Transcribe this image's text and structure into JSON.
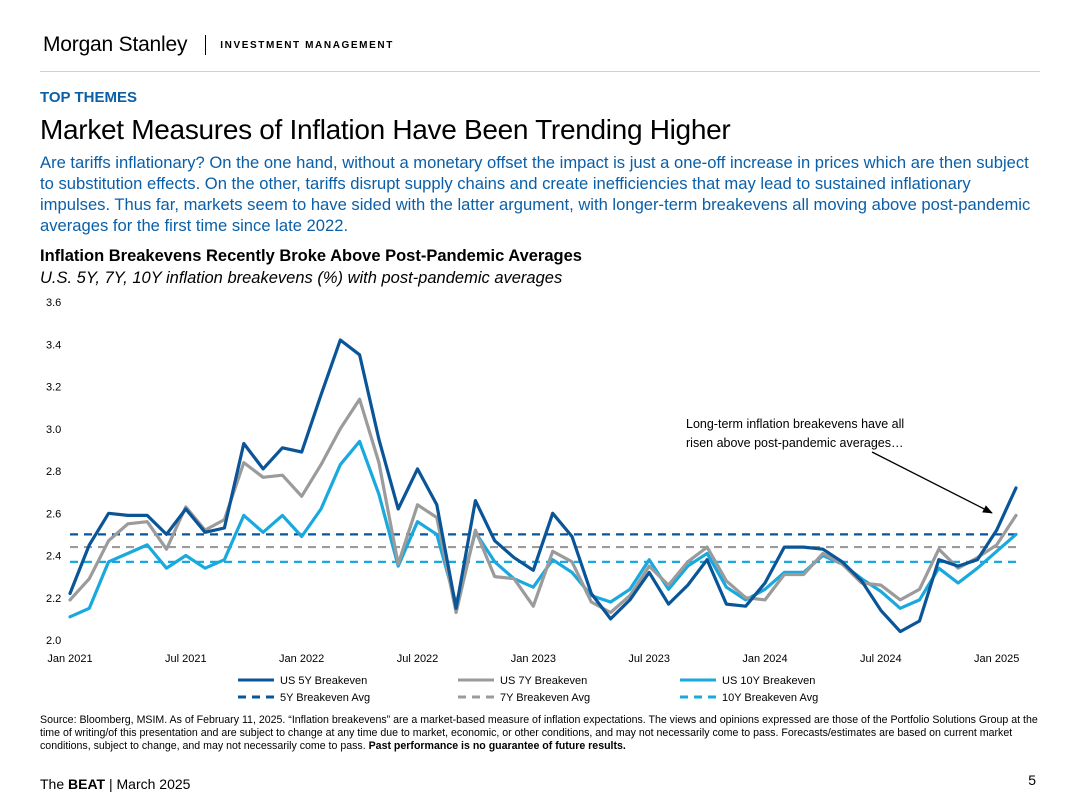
{
  "header": {
    "logo_text": "Morgan Stanley",
    "division": "INVESTMENT MANAGEMENT"
  },
  "kicker": "TOP THEMES",
  "title": "Market Measures of Inflation Have Been Trending Higher",
  "intro": "Are tariffs inflationary? On the one hand, without a monetary offset the impact is just a one-off increase in prices which are then subject to substitution effects. On the other, tariffs disrupt supply chains and create inefficiencies that may lead to sustained inflationary impulses. Thus far, markets seem to have sided with the latter argument, with longer-term breakevens all moving above post-pandemic averages for the first time since late 2022.",
  "colors": {
    "accent_blue": "#0a5fa8",
    "series_5y": "#0a5597",
    "series_7y": "#9b9b9b",
    "series_10y": "#19a9de"
  },
  "chart_data": {
    "type": "line",
    "title": "Inflation Breakevens Recently Broke Above Post-Pandemic Averages",
    "subtitle": "U.S. 5Y, 7Y, 10Y inflation breakevens (%) with post-pandemic averages",
    "x": [
      "2021-01",
      "2021-02",
      "2021-03",
      "2021-04",
      "2021-05",
      "2021-06",
      "2021-07",
      "2021-08",
      "2021-09",
      "2021-10",
      "2021-11",
      "2021-12",
      "2022-01",
      "2022-02",
      "2022-03",
      "2022-04",
      "2022-05",
      "2022-06",
      "2022-07",
      "2022-08",
      "2022-09",
      "2022-10",
      "2022-11",
      "2022-12",
      "2023-01",
      "2023-02",
      "2023-03",
      "2023-04",
      "2023-05",
      "2023-06",
      "2023-07",
      "2023-08",
      "2023-09",
      "2023-10",
      "2023-11",
      "2023-12",
      "2024-01",
      "2024-02",
      "2024-03",
      "2024-04",
      "2024-05",
      "2024-06",
      "2024-07",
      "2024-08",
      "2024-09",
      "2024-10",
      "2024-11",
      "2024-12",
      "2025-01",
      "2025-02"
    ],
    "x_ticks": [
      {
        "x": "2021-01",
        "label": "Jan 2021"
      },
      {
        "x": "2021-07",
        "label": "Jul 2021"
      },
      {
        "x": "2022-01",
        "label": "Jan 2022"
      },
      {
        "x": "2022-07",
        "label": "Jul 2022"
      },
      {
        "x": "2023-01",
        "label": "Jan 2023"
      },
      {
        "x": "2023-07",
        "label": "Jul 2023"
      },
      {
        "x": "2024-01",
        "label": "Jan 2024"
      },
      {
        "x": "2024-07",
        "label": "Jul 2024"
      },
      {
        "x": "2025-01",
        "label": "Jan 2025"
      }
    ],
    "ylim": [
      2.0,
      3.6
    ],
    "y_ticks": [
      "2.0",
      "2.2",
      "2.4",
      "2.6",
      "2.8",
      "3.0",
      "3.2",
      "3.4",
      "3.6"
    ],
    "grid": false,
    "legend_position": "bottom",
    "series": [
      {
        "name": "US 5Y Breakeven",
        "style": "solid",
        "color": "#0a5597",
        "values": [
          2.22,
          2.45,
          2.6,
          2.59,
          2.59,
          2.5,
          2.62,
          2.51,
          2.53,
          2.93,
          2.81,
          2.91,
          2.89,
          3.16,
          3.42,
          3.35,
          2.95,
          2.62,
          2.81,
          2.64,
          2.15,
          2.66,
          2.47,
          2.39,
          2.33,
          2.6,
          2.49,
          2.22,
          2.1,
          2.19,
          2.32,
          2.17,
          2.26,
          2.38,
          2.17,
          2.16,
          2.27,
          2.44,
          2.44,
          2.43,
          2.37,
          2.28,
          2.14,
          2.04,
          2.09,
          2.38,
          2.35,
          2.38,
          2.52,
          2.72
        ]
      },
      {
        "name": "US 7Y Breakeven",
        "style": "solid",
        "color": "#9b9b9b",
        "values": [
          2.19,
          2.29,
          2.47,
          2.55,
          2.56,
          2.43,
          2.63,
          2.52,
          2.57,
          2.84,
          2.77,
          2.78,
          2.68,
          2.83,
          3.0,
          3.14,
          2.84,
          2.36,
          2.64,
          2.58,
          2.13,
          2.52,
          2.3,
          2.29,
          2.16,
          2.42,
          2.37,
          2.18,
          2.13,
          2.21,
          2.35,
          2.26,
          2.37,
          2.44,
          2.28,
          2.2,
          2.19,
          2.31,
          2.31,
          2.41,
          2.36,
          2.27,
          2.26,
          2.19,
          2.24,
          2.43,
          2.34,
          2.39,
          2.45,
          2.59
        ]
      },
      {
        "name": "US 10Y Breakeven",
        "style": "solid",
        "color": "#19a9de",
        "values": [
          2.11,
          2.15,
          2.37,
          2.41,
          2.45,
          2.34,
          2.4,
          2.34,
          2.38,
          2.59,
          2.51,
          2.59,
          2.49,
          2.62,
          2.83,
          2.94,
          2.69,
          2.35,
          2.56,
          2.5,
          2.17,
          2.51,
          2.37,
          2.29,
          2.25,
          2.38,
          2.32,
          2.21,
          2.18,
          2.24,
          2.38,
          2.24,
          2.35,
          2.41,
          2.25,
          2.19,
          2.24,
          2.32,
          2.32,
          2.4,
          2.36,
          2.29,
          2.23,
          2.15,
          2.19,
          2.34,
          2.27,
          2.34,
          2.42,
          2.5
        ]
      },
      {
        "name": "5Y Breakeven Avg",
        "style": "dashed",
        "color": "#0a5597",
        "value": 2.5
      },
      {
        "name": "7Y Breakeven Avg",
        "style": "dashed",
        "color": "#9b9b9b",
        "value": 2.44
      },
      {
        "name": "10Y Breakeven Avg",
        "style": "dashed",
        "color": "#19a9de",
        "value": 2.37
      }
    ],
    "annotation": {
      "text_lines": [
        "Long-term inflation breakevens have all",
        "risen above post-pandemic averages…"
      ]
    }
  },
  "source_text": "Source: Bloomberg, MSIM. As of February 11, 2025. “Inflation breakevens” are a market-based measure of inflation expectations. The views and opinions expressed are those of the Portfolio Solutions Group at the time of writing/of this presentation and are subject to change at any time due to market, economic, or other conditions, and may not necessarily come to pass. Forecasts/estimates are based on current market conditions, subject to change, and may not necessarily come to pass.",
  "source_bold": "Past performance is no guarantee of future results.",
  "footer": {
    "the": "The",
    "beat": "BEAT",
    "rest": "| March 2025",
    "page_number": "5"
  }
}
